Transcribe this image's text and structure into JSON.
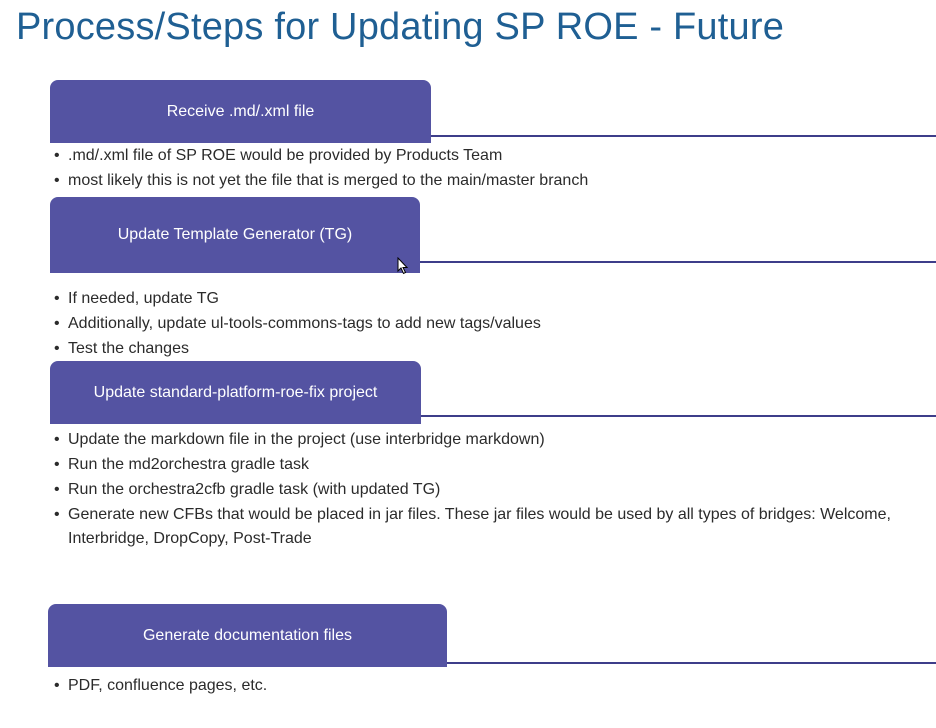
{
  "title": "Process/Steps for Updating SP ROE - Future",
  "steps": [
    {
      "label": "Receive .md/.xml file",
      "bullets": [
        ".md/.xml file of SP ROE would be provided by Products Team",
        "most likely this is not yet the file that is merged to the main/master branch"
      ]
    },
    {
      "label": "Update Template Generator (TG)",
      "bullets": [
        "If needed, update TG",
        "Additionally, update ul-tools-commons-tags to add new tags/values",
        "Test the changes"
      ]
    },
    {
      "label": "Update standard-platform-roe-fix project",
      "bullets": [
        "Update the markdown file in the project (use interbridge markdown)",
        "Run the md2orchestra gradle task",
        "Run the orchestra2cfb gradle task (with updated TG)",
        "Generate new CFBs that would be placed in jar files. These jar files would be used by all types of bridges: Welcome, Interbridge, DropCopy, Post-Trade"
      ]
    },
    {
      "label": "Generate documentation files",
      "bullets": [
        "PDF, confluence pages, etc."
      ]
    }
  ],
  "colors": {
    "title": "#1f5f93",
    "tab": "#5453a2",
    "rule": "#3e3e8a"
  }
}
